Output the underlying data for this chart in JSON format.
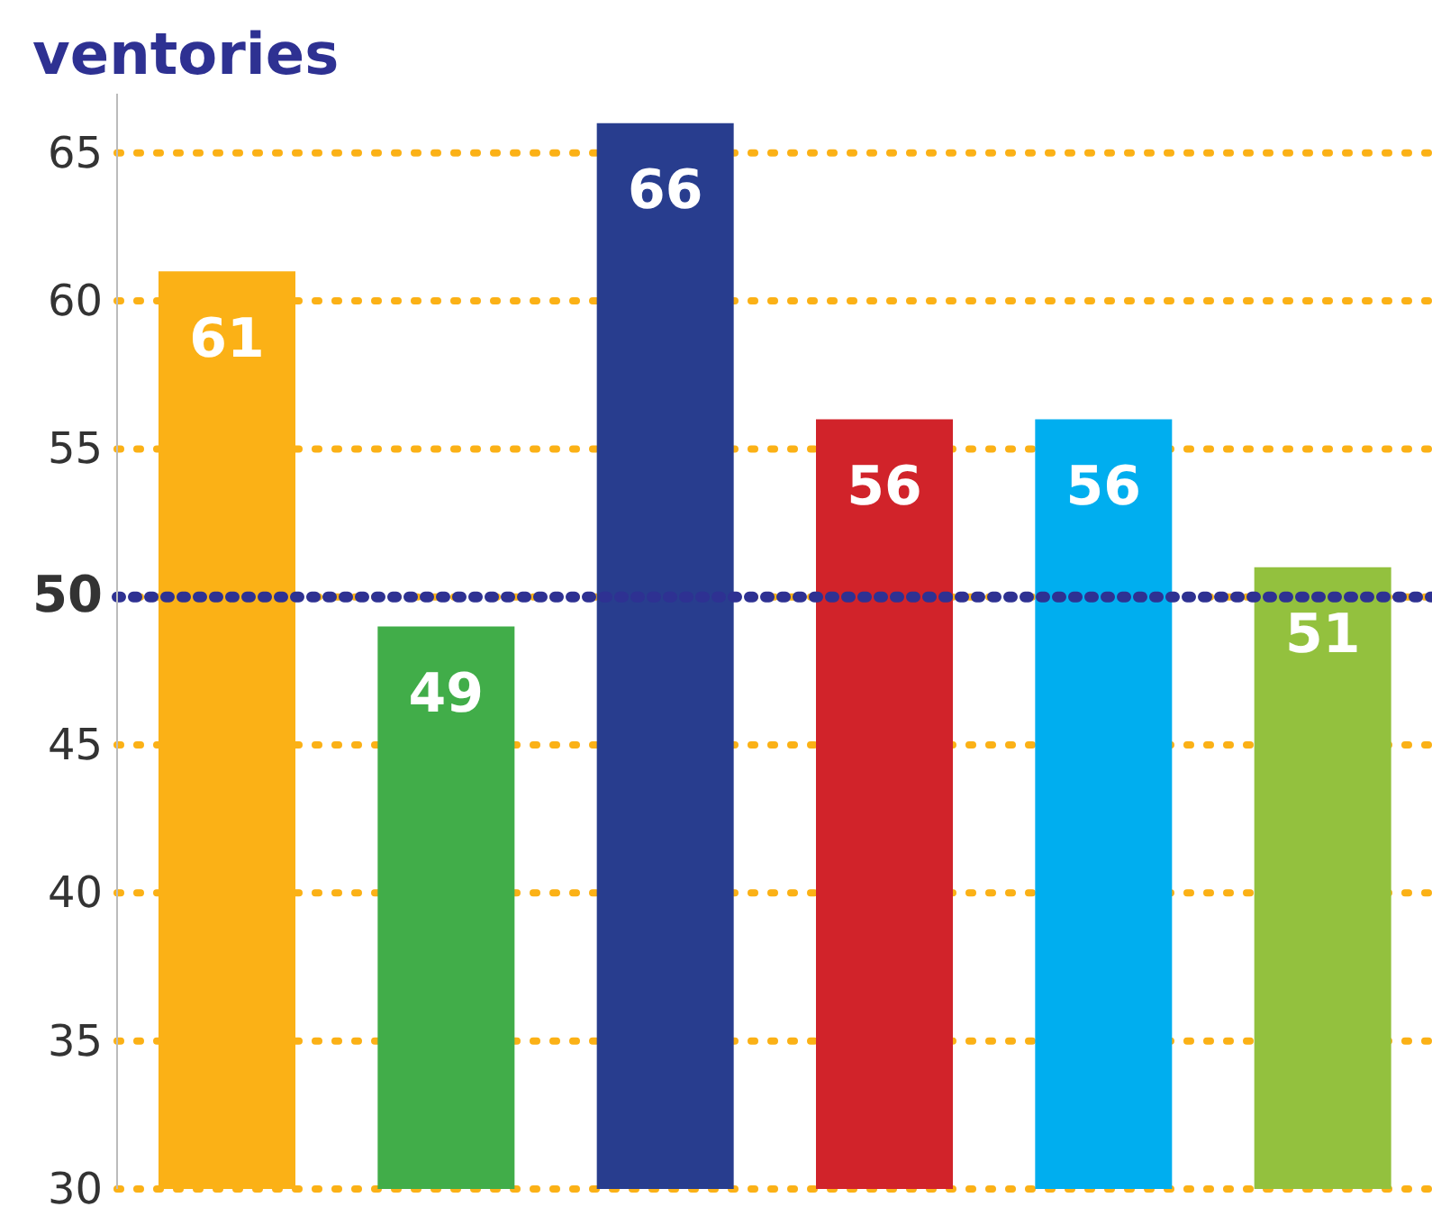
{
  "chart_data": {
    "type": "bar",
    "title": "ventories",
    "categories": [
      null,
      null,
      null,
      null,
      null,
      null
    ],
    "values": [
      61,
      49,
      66,
      56,
      56,
      51
    ],
    "colors": [
      "#fbb116",
      "#41ad49",
      "#283d8e",
      "#d1232a",
      "#00aeef",
      "#93c13e"
    ],
    "ylim": [
      30,
      67
    ],
    "yticks": [
      30,
      35,
      40,
      45,
      50,
      55,
      60,
      65
    ],
    "grid": "y",
    "data_labels": true,
    "ref_lines": [
      {
        "axis": "y",
        "value": 50,
        "color": "#2e3192",
        "line_style": "dotted"
      }
    ]
  }
}
